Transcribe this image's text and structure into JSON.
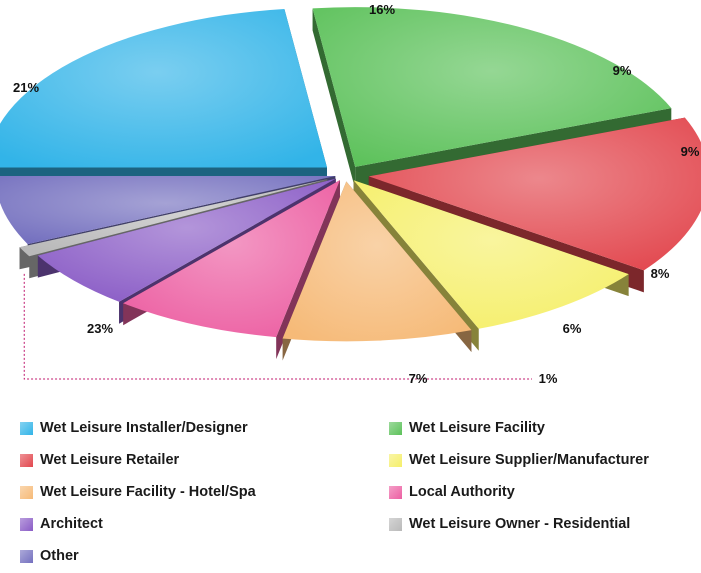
{
  "chart_data": {
    "type": "pie",
    "style": "3d-exploded",
    "slices": [
      {
        "label": "Wet Leisure Installer/Designer",
        "value": 23,
        "value_label": "23%",
        "color": "#32b4e8"
      },
      {
        "label": "Wet Leisure Facility",
        "value": 21,
        "value_label": "21%",
        "color": "#5cc15a"
      },
      {
        "label": "Wet Leisure Retailer",
        "value": 16,
        "value_label": "16%",
        "color": "#e2474e"
      },
      {
        "label": "Wet Leisure Supplier/Manufacturer",
        "value": 9,
        "value_label": "9%",
        "color": "#f5ef6a"
      },
      {
        "label": "Wet Leisure Facility - Hotel/Spa",
        "value": 9,
        "value_label": "9%",
        "color": "#f6ba78"
      },
      {
        "label": "Local Authority",
        "value": 8,
        "value_label": "8%",
        "color": "#ec5fa2"
      },
      {
        "label": "Architect",
        "value": 6,
        "value_label": "6%",
        "color": "#8a5cc6"
      },
      {
        "label": "Wet Leisure Owner - Residential",
        "value": 1,
        "value_label": "1%",
        "color": "#b9b9b9"
      },
      {
        "label": "Other",
        "value": 7,
        "value_label": "7%",
        "color": "#7470bf"
      }
    ],
    "legend": {
      "placement": "bottom",
      "items": [
        {
          "label": "Wet Leisure Installer/Designer",
          "color": "#32b4e8"
        },
        {
          "label": "Wet Leisure Facility",
          "color": "#5cc15a"
        },
        {
          "label": "Wet Leisure Retailer",
          "color": "#e2474e"
        },
        {
          "label": "Wet Leisure Supplier/Manufacturer",
          "color": "#f5ef6a"
        },
        {
          "label": "Wet Leisure Facility - Hotel/Spa",
          "color": "#f6ba78"
        },
        {
          "label": "Local Authority",
          "color": "#ec5fa2"
        },
        {
          "label": "Architect",
          "color": "#8a5cc6"
        },
        {
          "label": "Wet Leisure Owner - Residential",
          "color": "#b9b9b9"
        },
        {
          "label": "Other",
          "color": "#7470bf"
        }
      ]
    }
  }
}
